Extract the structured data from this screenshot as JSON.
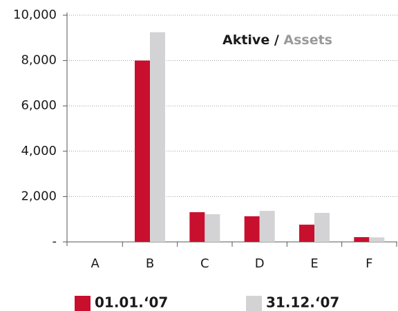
{
  "chart_data": {
    "type": "bar",
    "title": "Aktive /",
    "title_translation": "Assets",
    "categories": [
      "A",
      "B",
      "C",
      "D",
      "E",
      "F"
    ],
    "series": [
      {
        "name": "01.01.‘07",
        "color": "#c8102e",
        "values": [
          0,
          8000,
          1310,
          1130,
          760,
          210
        ]
      },
      {
        "name": "31.12.‘07",
        "color": "#d3d3d5",
        "values": [
          0,
          9250,
          1220,
          1370,
          1280,
          200
        ]
      }
    ],
    "ylim": [
      0,
      10000
    ],
    "yticks": [
      {
        "value": 0,
        "label": "-"
      },
      {
        "value": 2000,
        "label": "2,000"
      },
      {
        "value": 4000,
        "label": "4,000"
      },
      {
        "value": 6000,
        "label": "6,000"
      },
      {
        "value": 8000,
        "label": "8,000"
      },
      {
        "value": 10000,
        "label": "10,000"
      }
    ],
    "grid": true
  }
}
